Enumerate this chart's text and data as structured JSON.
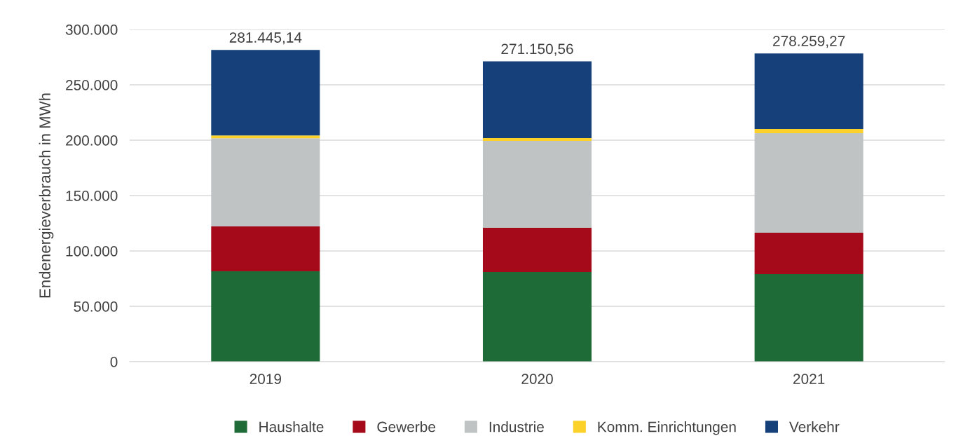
{
  "chart_data": {
    "type": "bar",
    "stacked": true,
    "ylabel": "Endenergieverbrauch in MWh",
    "categories": [
      "2019",
      "2020",
      "2021"
    ],
    "series": [
      {
        "name": "Haushalte",
        "color": "#1e6b37",
        "values": [
          81600,
          81000,
          79100
        ]
      },
      {
        "name": "Gewerbe",
        "color": "#a50a1a",
        "values": [
          40500,
          39900,
          37350
        ]
      },
      {
        "name": "Industrie",
        "color": "#bfc3c4",
        "values": [
          79700,
          78500,
          89850
        ]
      },
      {
        "name": "Komm. Einrichtungen",
        "color": "#fcd12a",
        "values": [
          2500,
          2500,
          3800
        ]
      },
      {
        "name": "Verkehr",
        "color": "#15407a",
        "values": [
          77145.14,
          69250.56,
          68159.27
        ]
      }
    ],
    "totals": [
      "281.445,14",
      "271.150,56",
      "278.259,27"
    ],
    "ylim": [
      0,
      300000
    ],
    "yticks": [
      {
        "value": 0,
        "label": "0"
      },
      {
        "value": 50000,
        "label": "50.000"
      },
      {
        "value": 100000,
        "label": "100.000"
      },
      {
        "value": 150000,
        "label": "150.000"
      },
      {
        "value": 200000,
        "label": "200.000"
      },
      {
        "value": 250000,
        "label": "250.000"
      },
      {
        "value": 300000,
        "label": "300.000"
      }
    ],
    "grid": "y",
    "legend": "bottom"
  }
}
